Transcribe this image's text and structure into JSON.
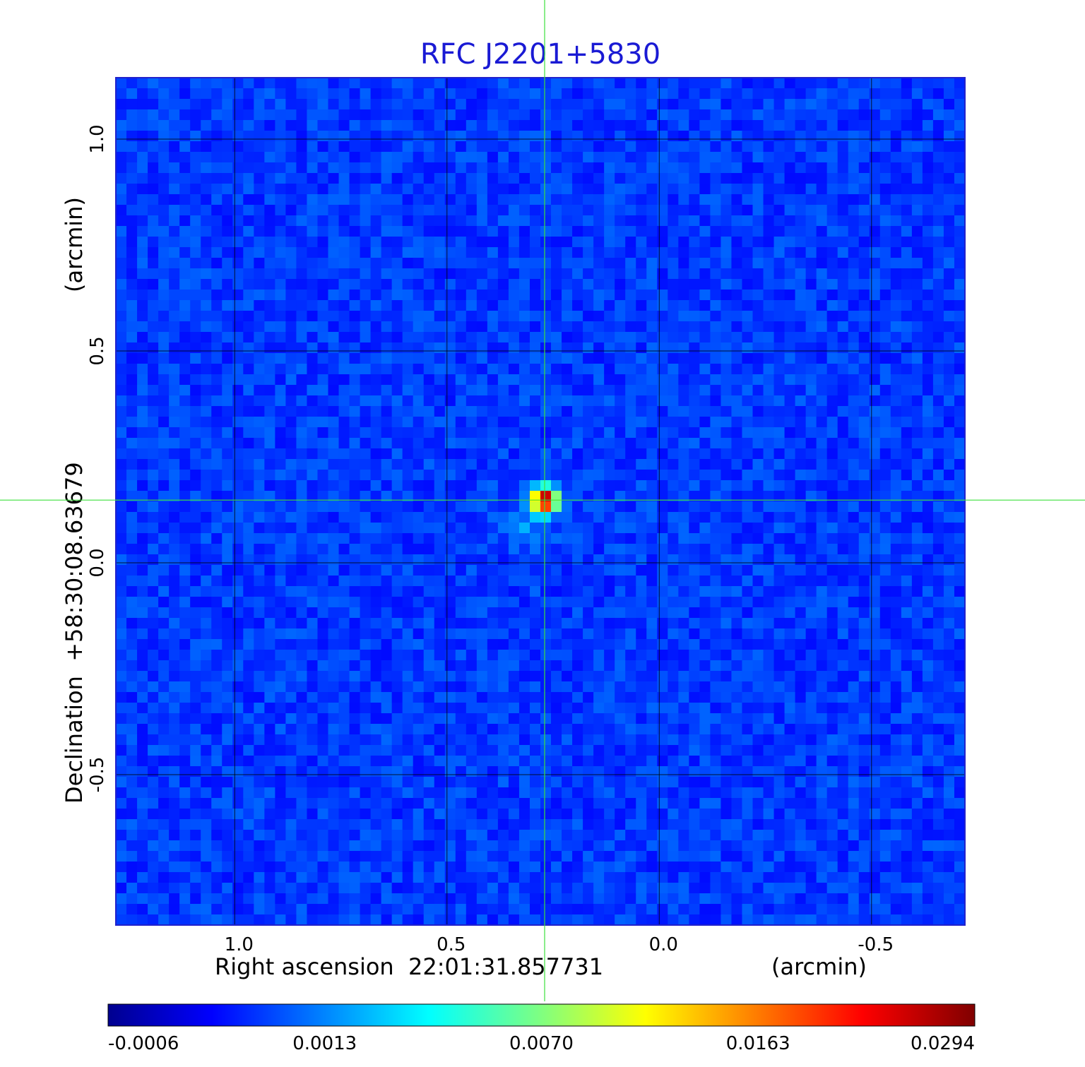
{
  "chart_data": {
    "type": "heatmap",
    "title": "RFC J2201+5830",
    "x_axis": {
      "label": "Right ascension  22:01:31.857731",
      "unit": "(arcmin)",
      "ticks": [
        "1.0",
        "0.5",
        "0.0",
        "-0.5"
      ],
      "tick_values": [
        1.0,
        0.5,
        0.0,
        -0.5
      ],
      "range": [
        1.28,
        -0.72
      ]
    },
    "y_axis": {
      "label": "Declination  +58:30:08.63679",
      "unit": "(arcmin)",
      "ticks": [
        "1.0",
        "0.5",
        "0.0",
        "-0.5"
      ],
      "tick_values": [
        1.0,
        0.5,
        0.0,
        -0.5
      ],
      "range": [
        -0.855,
        1.145
      ]
    },
    "source_peak": {
      "x": 0.27,
      "y": 0.148,
      "value": 0.0294
    },
    "background_level": -0.0002,
    "grid": true,
    "crosshair": {
      "x": 0.27,
      "y": 0.148,
      "color": "#3de03d"
    },
    "colorbar": {
      "ticks": [
        "-0.0006",
        "0.0013",
        "0.0070",
        "0.0163",
        "0.0294"
      ],
      "colormap": "jet",
      "placement": "bottom"
    }
  }
}
